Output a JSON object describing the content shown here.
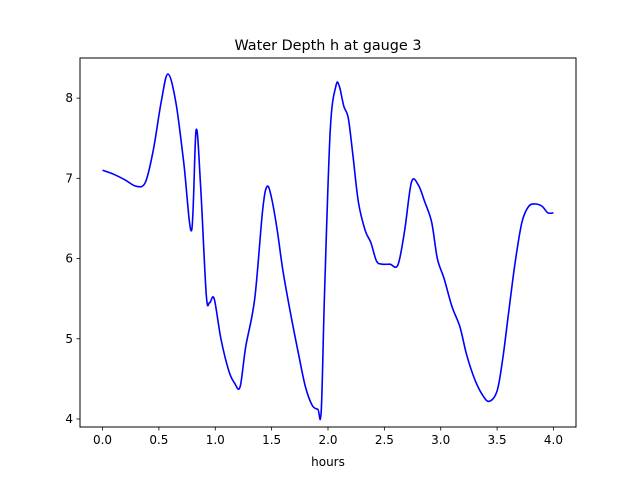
{
  "chart_data": {
    "type": "line",
    "title": "Water Depth h at gauge 3",
    "xlabel": "hours",
    "ylabel": "",
    "xlim": [
      -0.2,
      4.2
    ],
    "ylim": [
      3.9,
      8.5
    ],
    "xticks": [
      "0.0",
      "0.5",
      "1.0",
      "1.5",
      "2.0",
      "2.5",
      "3.0",
      "3.5",
      "4.0"
    ],
    "yticks": [
      "4",
      "5",
      "6",
      "7",
      "8"
    ],
    "grid": false,
    "legend": "none",
    "series": [
      {
        "color": "#0000ff",
        "x": [
          0.0,
          0.1,
          0.2,
          0.3,
          0.38,
          0.45,
          0.52,
          0.58,
          0.65,
          0.72,
          0.79,
          0.83,
          0.87,
          0.92,
          0.95,
          0.99,
          1.05,
          1.12,
          1.17,
          1.22,
          1.27,
          1.35,
          1.42,
          1.46,
          1.5,
          1.55,
          1.6,
          1.67,
          1.74,
          1.8,
          1.86,
          1.91,
          1.94,
          1.97,
          2.02,
          2.07,
          2.1,
          2.14,
          2.18,
          2.22,
          2.27,
          2.33,
          2.38,
          2.43,
          2.48,
          2.55,
          2.62,
          2.68,
          2.74,
          2.8,
          2.86,
          2.92,
          2.97,
          3.03,
          3.1,
          3.17,
          3.23,
          3.3,
          3.37,
          3.43,
          3.5,
          3.55,
          3.6,
          3.66,
          3.72,
          3.78,
          3.84,
          3.9,
          3.95,
          4.0
        ],
        "values": [
          7.1,
          7.05,
          6.98,
          6.9,
          6.95,
          7.35,
          7.95,
          8.3,
          7.95,
          7.2,
          6.35,
          7.6,
          6.9,
          5.55,
          5.45,
          5.5,
          5.0,
          4.6,
          4.45,
          4.4,
          4.9,
          5.5,
          6.6,
          6.9,
          6.75,
          6.35,
          5.85,
          5.3,
          4.8,
          4.4,
          4.17,
          4.12,
          4.1,
          5.6,
          7.6,
          8.15,
          8.15,
          7.9,
          7.75,
          7.3,
          6.7,
          6.35,
          6.2,
          5.97,
          5.93,
          5.93,
          5.92,
          6.35,
          6.95,
          6.92,
          6.7,
          6.45,
          6.0,
          5.75,
          5.4,
          5.15,
          4.8,
          4.5,
          4.3,
          4.22,
          4.35,
          4.75,
          5.3,
          5.95,
          6.45,
          6.65,
          6.68,
          6.65,
          6.57,
          6.57
        ]
      }
    ]
  }
}
